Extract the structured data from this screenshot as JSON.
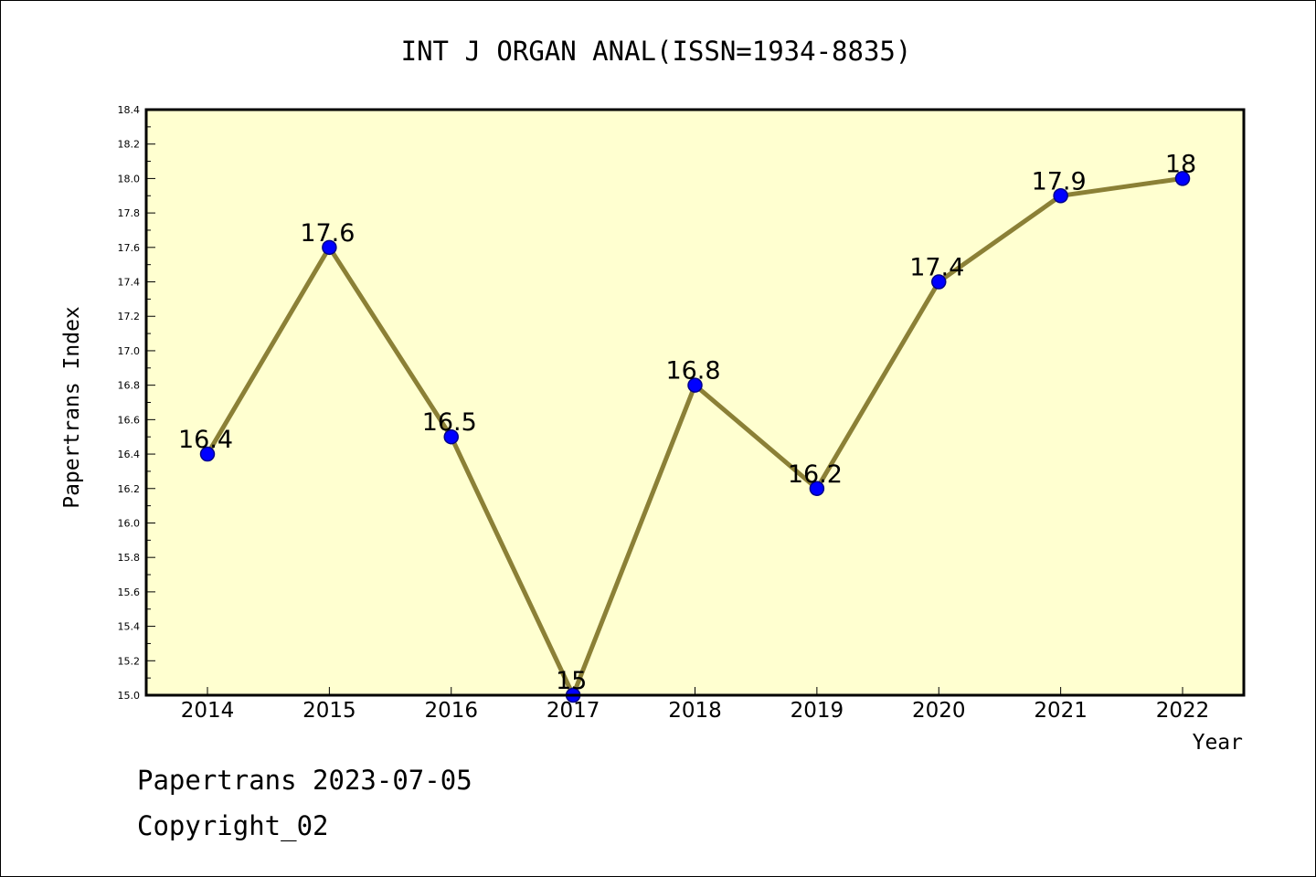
{
  "chart_data": {
    "type": "line",
    "title": "INT J ORGAN ANAL(ISSN=1934-8835)",
    "xlabel": "Year",
    "ylabel": "Papertrans Index",
    "categories": [
      "2014",
      "2015",
      "2016",
      "2017",
      "2018",
      "2019",
      "2020",
      "2021",
      "2022"
    ],
    "values": [
      16.4,
      17.6,
      16.5,
      15.0,
      16.8,
      16.2,
      17.4,
      17.9,
      18.0
    ],
    "data_labels": [
      "16.4",
      "17.6",
      "16.5",
      "15",
      "16.8",
      "16.2",
      "17.4",
      "17.9",
      "18"
    ],
    "ylim": [
      15.0,
      18.4
    ],
    "yticks": [
      "15.0",
      "15.2",
      "15.4",
      "15.6",
      "15.8",
      "16.0",
      "16.2",
      "16.4",
      "16.6",
      "16.8",
      "17.0",
      "17.2",
      "17.4",
      "17.6",
      "17.8",
      "18.0",
      "18.2",
      "18.4"
    ],
    "grid": false,
    "legend": "none",
    "colors": {
      "plot_background": "#ffffd0",
      "line": "#8b8036",
      "marker": "#0000ff"
    }
  },
  "footer": {
    "date_line": "Papertrans 2023-07-05",
    "copyright": "Copyright_02"
  }
}
